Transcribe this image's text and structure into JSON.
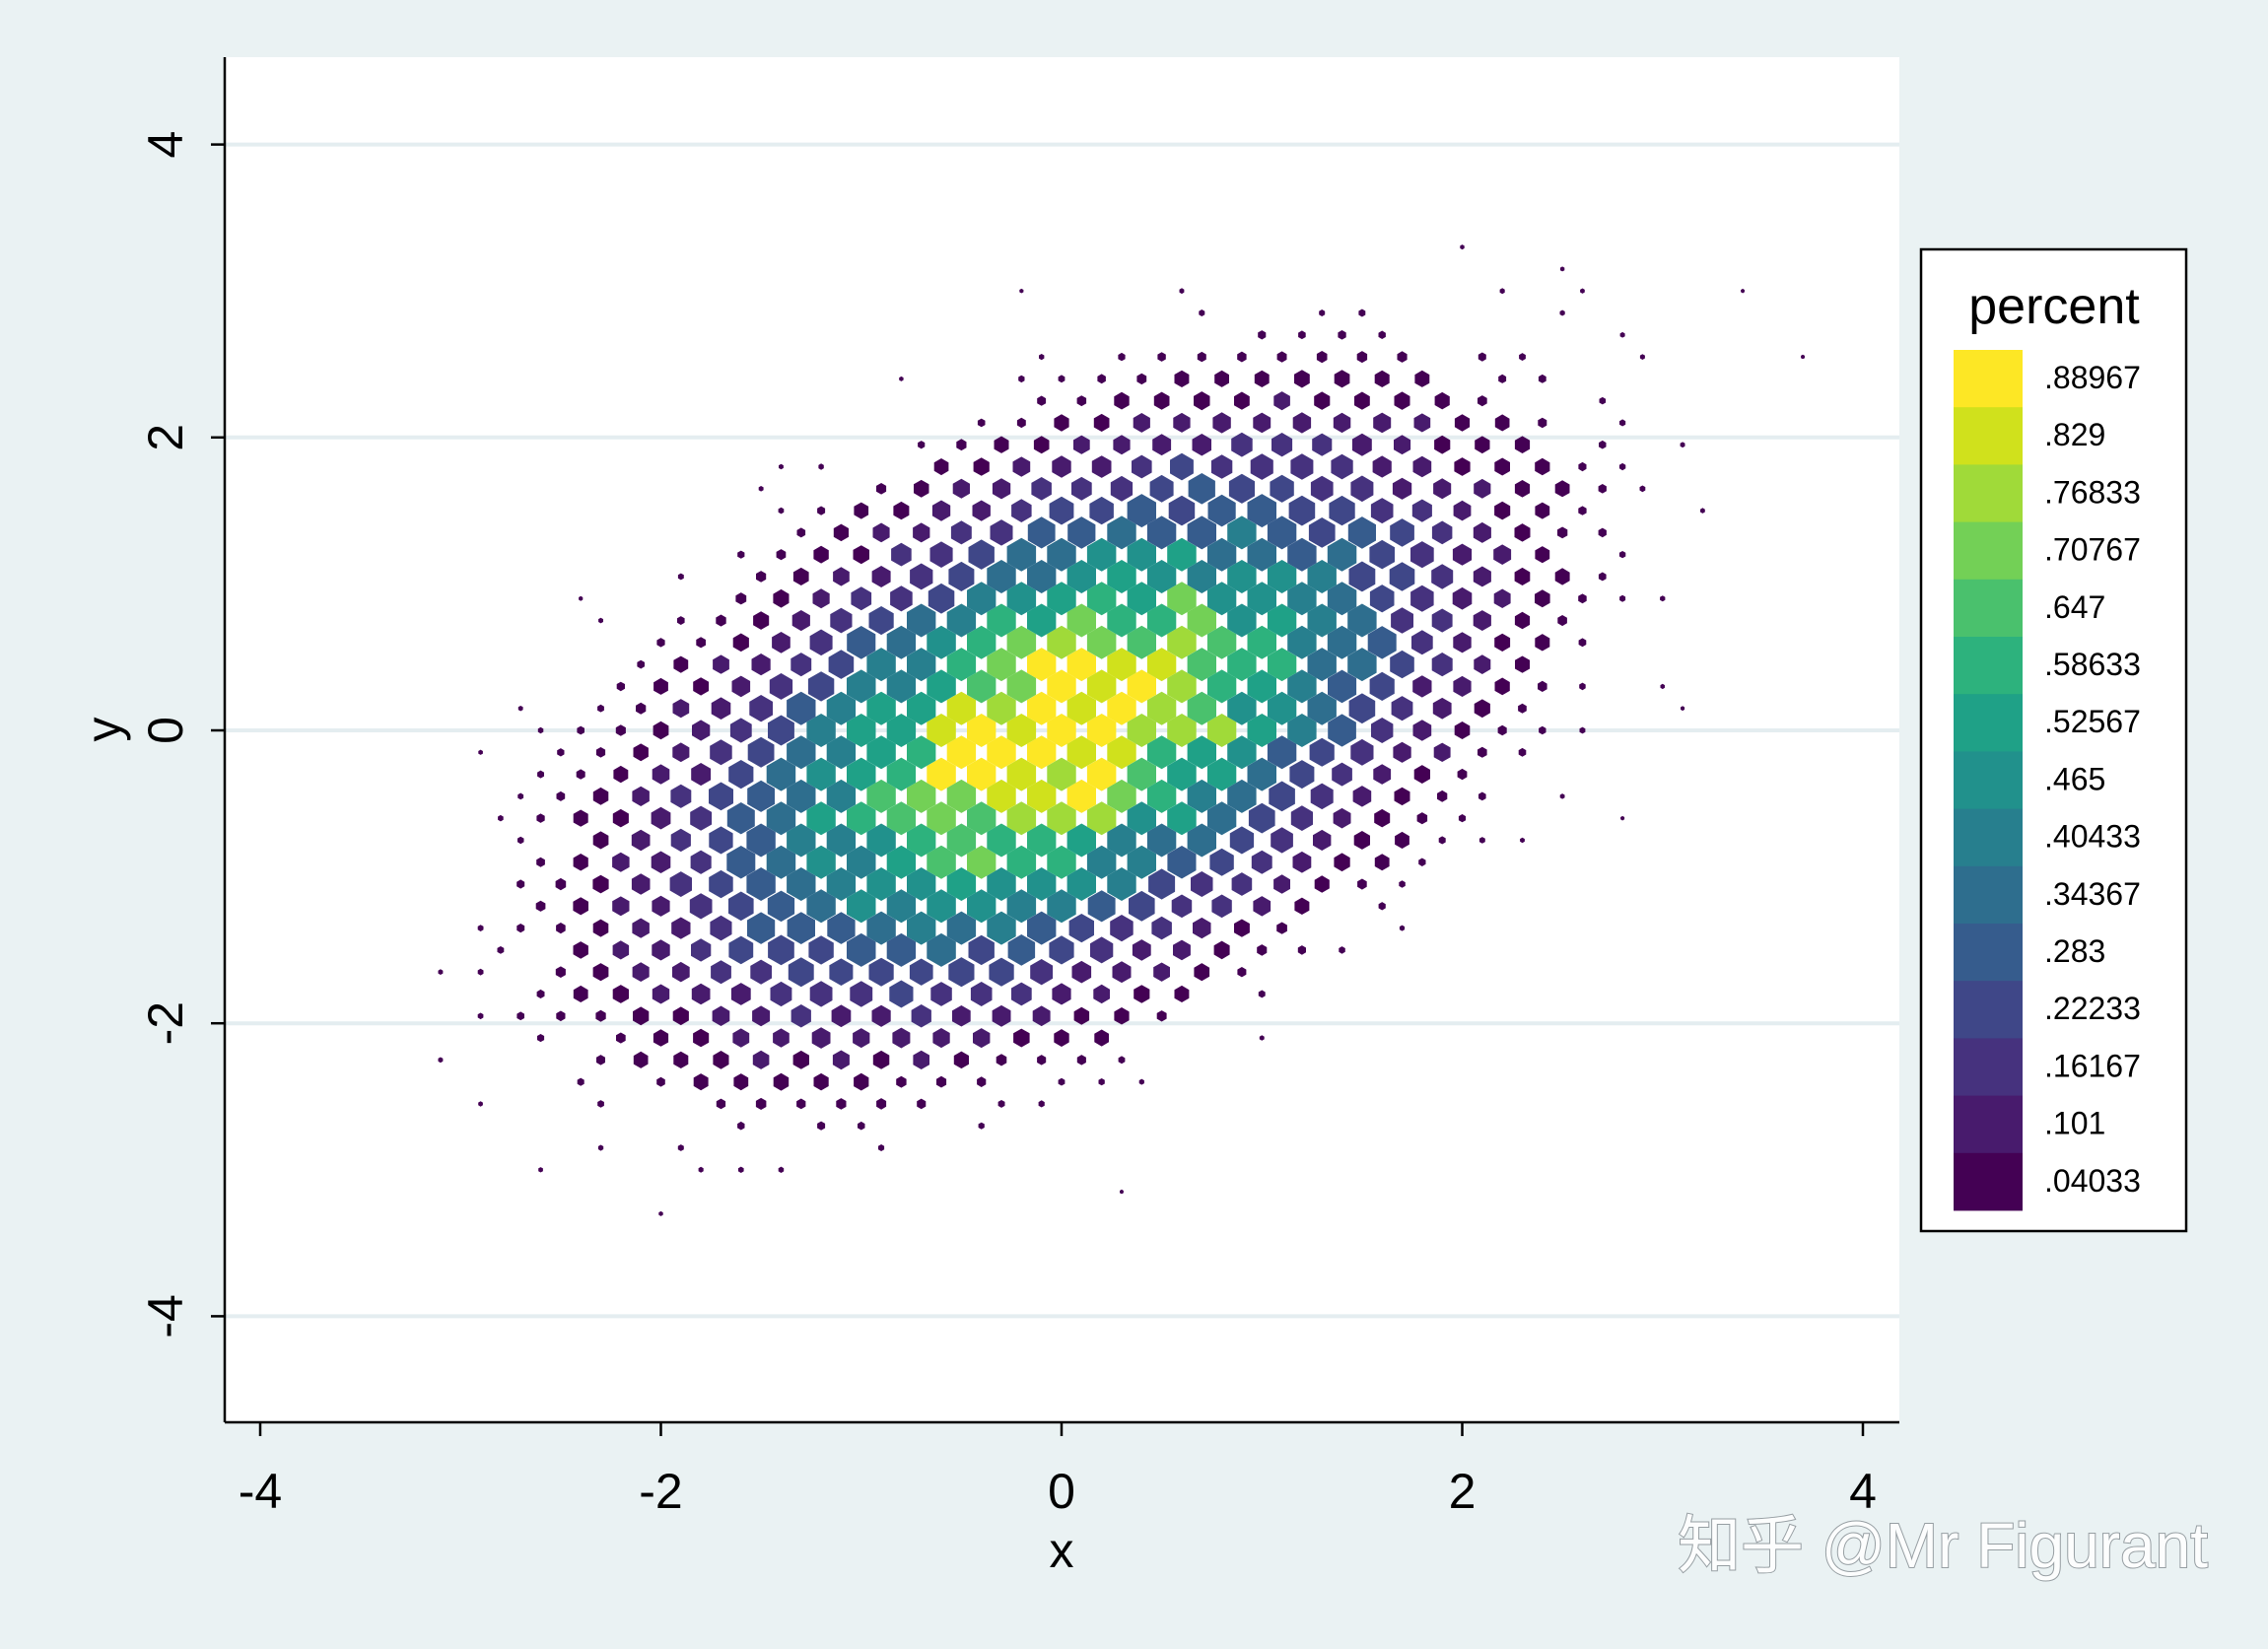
{
  "chart_data": {
    "type": "heatmap",
    "subtype": "hexbin",
    "title": "",
    "xlabel": "x",
    "ylabel": "y",
    "xlim": [
      -4.1,
      4.1
    ],
    "ylim": [
      -4.7,
      4.6
    ],
    "x_ticks": [
      -4,
      -2,
      0,
      2,
      4
    ],
    "y_ticks": [
      -4,
      -2,
      0,
      2,
      4
    ],
    "x_tick_labels": [
      "-4",
      "-2",
      "0",
      "2",
      "4"
    ],
    "y_tick_labels": [
      "-4",
      "-2",
      "0",
      "2",
      "4"
    ],
    "grid": "horizontal",
    "correlation_estimate": 0.5,
    "legend": {
      "title": "percent",
      "position": "right",
      "levels": [
        ".88967",
        ".829",
        ".76833",
        ".70767",
        ".647",
        ".58633",
        ".52567",
        ".465",
        ".40433",
        ".34367",
        ".283",
        ".22233",
        ".16167",
        ".101",
        ".04033"
      ],
      "colors": [
        "#fde725",
        "#d0e11c",
        "#a0da39",
        "#73d056",
        "#4ac16d",
        "#2db27d",
        "#1fa187",
        "#21918c",
        "#277f8e",
        "#2e6e8e",
        "#365c8d",
        "#3f4788",
        "#46327e",
        "#481b6d",
        "#440154"
      ]
    },
    "hot_cells": [
      {
        "x": -0.4,
        "y": -0.2,
        "percent": 0.88967
      },
      {
        "x": 0.1,
        "y": 0.05,
        "percent": 0.88967
      },
      {
        "x": 0.5,
        "y": 0.5,
        "percent": 0.829
      },
      {
        "x": 0.2,
        "y": 0.3,
        "percent": 0.829
      },
      {
        "x": -0.2,
        "y": 0.05,
        "percent": 0.829
      },
      {
        "x": -0.2,
        "y": -0.4,
        "percent": 0.829
      },
      {
        "x": 0.5,
        "y": 0.05,
        "percent": 0.76833
      },
      {
        "x": 0.7,
        "y": 0.05,
        "percent": 0.76833
      },
      {
        "x": 0.1,
        "y": -0.6,
        "percent": 0.76833
      },
      {
        "x": -0.2,
        "y": -0.6,
        "percent": 0.76833
      }
    ]
  },
  "watermark": "知乎 @Mr Figurant",
  "colors": {
    "background": "#eaf2f3",
    "plot_background": "#ffffff",
    "gridline": "#e4edf0",
    "axis": "#000000"
  }
}
